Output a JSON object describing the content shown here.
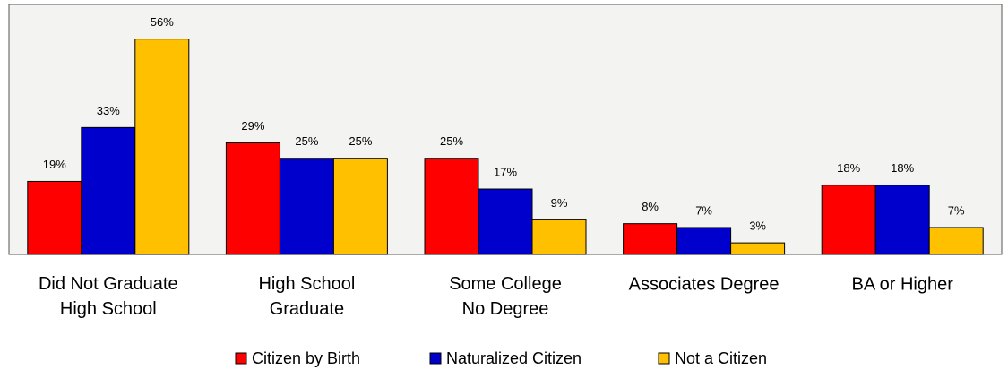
{
  "chart_data": {
    "type": "bar",
    "categories": [
      "Did Not Graduate\nHigh School",
      "High School\nGraduate",
      "Some College\nNo Degree",
      "Associates Degree",
      "BA or Higher"
    ],
    "series": [
      {
        "name": "Citizen by Birth",
        "color": "#ff0000",
        "values": [
          19,
          29,
          25,
          8,
          18
        ],
        "value_labels": [
          "19%",
          "29%",
          "25%",
          "8%",
          "18%"
        ]
      },
      {
        "name": "Naturalized Citizen",
        "color": "#0000cc",
        "values": [
          33,
          25,
          17,
          7,
          18
        ],
        "value_labels": [
          "33%",
          "25%",
          "17%",
          "7%",
          "18%"
        ]
      },
      {
        "name": "Not a Citizen",
        "color": "#ffc000",
        "values": [
          56,
          25,
          9,
          3,
          7
        ],
        "value_labels": [
          "56%",
          "25%",
          "9%",
          "3%",
          "7%"
        ]
      }
    ],
    "ylim": [
      0,
      65
    ],
    "legend": "bottom"
  }
}
